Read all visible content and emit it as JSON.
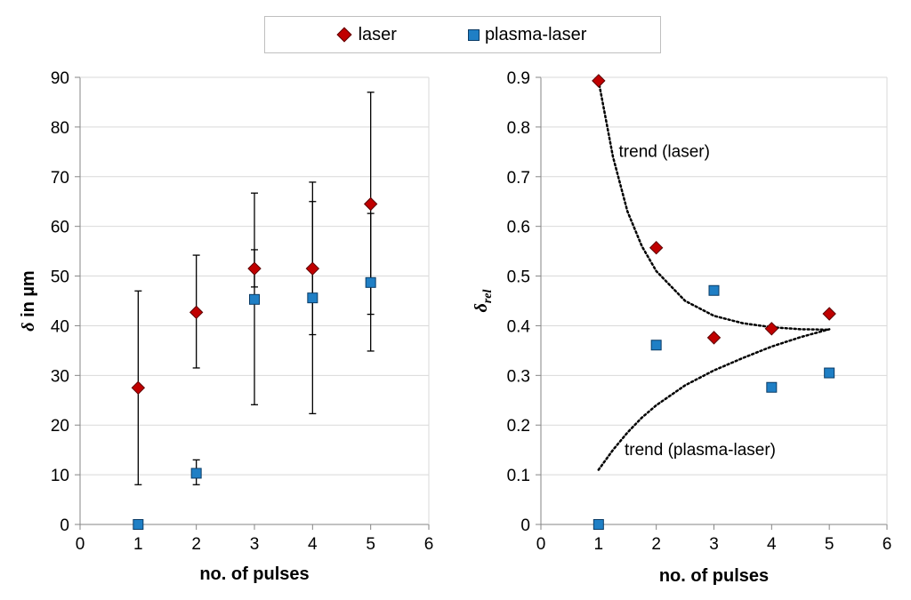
{
  "legend": {
    "laser": "laser",
    "plasma_laser": "plasma-laser"
  },
  "colors": {
    "laser": "#c00000",
    "laser_edge": "#5a0000",
    "plasma": "#1f7fc5",
    "plasma_edge": "#0b3c66",
    "axis": "#868686",
    "grid": "#d9d9d9"
  },
  "chart_data": [
    {
      "type": "scatter",
      "xlabel": "no. of pulses",
      "ylabel_main": "δ",
      "ylabel_rest": " in µm",
      "xlim": [
        0,
        6
      ],
      "ylim": [
        0,
        90
      ],
      "xticks": [
        "0",
        "1",
        "2",
        "3",
        "4",
        "5",
        "6"
      ],
      "yticks": [
        "0",
        "10",
        "20",
        "30",
        "40",
        "50",
        "60",
        "70",
        "80",
        "90"
      ],
      "grid": "horizontal",
      "series": [
        {
          "name": "laser",
          "marker": "diamond",
          "x": [
            1,
            2,
            3,
            4,
            5
          ],
          "y": [
            27.5,
            42.7,
            51.5,
            51.5,
            64.5
          ],
          "err_low": [
            8,
            31.5,
            47.8,
            38.2,
            42.3
          ],
          "err_high": [
            47,
            54.2,
            66.7,
            65,
            87
          ]
        },
        {
          "name": "plasma-laser",
          "marker": "square",
          "x": [
            1,
            2,
            3,
            4,
            5
          ],
          "y": [
            0,
            10.3,
            45.3,
            45.6,
            48.7
          ],
          "err_low": [
            0,
            8,
            24.1,
            22.3,
            34.9
          ],
          "err_high": [
            0,
            13,
            55.3,
            68.9,
            62.6
          ]
        }
      ]
    },
    {
      "type": "scatter",
      "xlabel": "no. of pulses",
      "ylabel_main": "δ",
      "ylabel_sub": "rel",
      "xlim": [
        0,
        6
      ],
      "ylim": [
        0,
        0.9
      ],
      "xticks": [
        "0",
        "1",
        "2",
        "3",
        "4",
        "5",
        "6"
      ],
      "yticks": [
        "0",
        "0.1",
        "0.2",
        "0.3",
        "0.4",
        "0.5",
        "0.6",
        "0.7",
        "0.8",
        "0.9"
      ],
      "grid": "horizontal",
      "series": [
        {
          "name": "laser",
          "marker": "diamond",
          "x": [
            1,
            2,
            3,
            4,
            5
          ],
          "y": [
            0.893,
            0.557,
            0.376,
            0.394,
            0.424
          ]
        },
        {
          "name": "plasma-laser",
          "marker": "square",
          "x": [
            1,
            2,
            3,
            4,
            5
          ],
          "y": [
            0,
            0.361,
            0.471,
            0.276,
            0.305
          ]
        }
      ],
      "trends": [
        {
          "label": "trend (laser)",
          "points": [
            [
              1,
              0.893
            ],
            [
              1.25,
              0.74
            ],
            [
              1.5,
              0.63
            ],
            [
              1.75,
              0.56
            ],
            [
              2,
              0.51
            ],
            [
              2.5,
              0.45
            ],
            [
              3,
              0.42
            ],
            [
              3.5,
              0.405
            ],
            [
              4,
              0.397
            ],
            [
              4.5,
              0.393
            ],
            [
              5,
              0.392
            ]
          ]
        },
        {
          "label": "trend (plasma-laser)",
          "points": [
            [
              1,
              0.11
            ],
            [
              1.25,
              0.15
            ],
            [
              1.5,
              0.185
            ],
            [
              1.75,
              0.215
            ],
            [
              2,
              0.24
            ],
            [
              2.5,
              0.28
            ],
            [
              3,
              0.31
            ],
            [
              3.5,
              0.335
            ],
            [
              4,
              0.358
            ],
            [
              4.5,
              0.377
            ],
            [
              5,
              0.393
            ]
          ]
        }
      ]
    }
  ]
}
